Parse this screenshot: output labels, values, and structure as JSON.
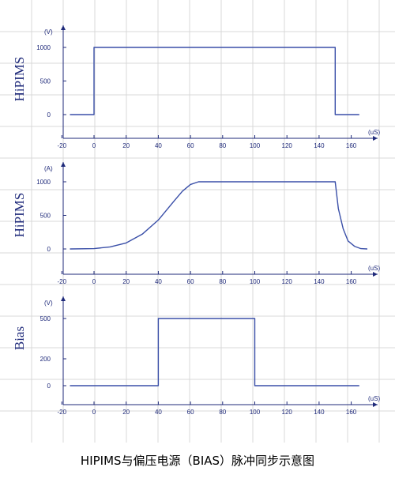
{
  "caption": "HIPIMS与偏压电源（BIAS）脉冲同步示意图",
  "colors": {
    "axis": "#1f2a7a",
    "signal": "#3a4fa8",
    "grid": "#d9d9d9"
  },
  "chart_data": [
    {
      "type": "line",
      "ylabel": "HiPIMS",
      "yunit": "(V)",
      "xunit": "(uS)",
      "xticks": [
        -20,
        0,
        20,
        40,
        60,
        80,
        100,
        120,
        140,
        160
      ],
      "yticks": [
        0,
        500,
        1000
      ],
      "xlim": [
        -20,
        170
      ],
      "ylim": [
        -200,
        1400
      ],
      "series": [
        {
          "x": [
            -15,
            0,
            0,
            150,
            150,
            165
          ],
          "y": [
            0,
            0,
            1000,
            1000,
            0,
            0
          ]
        }
      ]
    },
    {
      "type": "line",
      "ylabel": "HiPIMS",
      "yunit": "(A)",
      "xunit": "(uS)",
      "xticks": [
        -20,
        0,
        20,
        40,
        60,
        80,
        100,
        120,
        140,
        160
      ],
      "yticks": [
        0,
        500,
        1000
      ],
      "xlim": [
        -20,
        170
      ],
      "ylim": [
        -200,
        1400
      ],
      "series": [
        {
          "x": [
            -15,
            0,
            10,
            20,
            30,
            40,
            50,
            55,
            60,
            65,
            70,
            100,
            140,
            150,
            152,
            155,
            158,
            162,
            166,
            170
          ],
          "y": [
            0,
            5,
            30,
            90,
            220,
            430,
            720,
            860,
            960,
            1000,
            1000,
            1000,
            1000,
            1000,
            600,
            300,
            120,
            40,
            5,
            0
          ]
        }
      ]
    },
    {
      "type": "line",
      "ylabel": "Bias",
      "yunit": "(V)",
      "xunit": "(uS)",
      "xticks": [
        -20,
        0,
        20,
        40,
        60,
        80,
        100,
        120,
        140,
        160
      ],
      "yticks": [
        0,
        200,
        500
      ],
      "xlim": [
        -20,
        170
      ],
      "ylim": [
        -80,
        620
      ],
      "series": [
        {
          "x": [
            -15,
            40,
            40,
            100,
            100,
            165
          ],
          "y": [
            0,
            0,
            500,
            500,
            0,
            0
          ]
        }
      ]
    }
  ]
}
